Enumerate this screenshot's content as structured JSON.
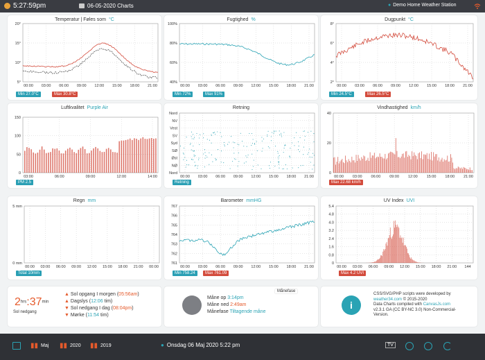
{
  "topbar": {
    "time": "5:27:59pm",
    "charts_title": "06-05-2020 Charts",
    "station_name": "Demo Home Weather Station"
  },
  "x_ticks_24": [
    "00:00",
    "03:00",
    "06:00",
    "09:00",
    "12:00",
    "15:00",
    "18:00",
    "21:00"
  ],
  "panels": {
    "temperature": {
      "title": "Temperatur | Føles som",
      "unit": "°C",
      "y_ticks": [
        "20°",
        "15°",
        "10°",
        "5°"
      ],
      "min_label": "Min 27.0°C",
      "max_label": "Max 30.8°C"
    },
    "humidity": {
      "title": "Fugtighed",
      "unit": "%",
      "y_ticks": [
        "100%",
        "80%",
        "60%",
        "40%"
      ],
      "min_label": "Min 72%",
      "max_label": "Max 91%"
    },
    "dewpoint": {
      "title": "Dugpunkt",
      "unit": "°C",
      "y_ticks": [
        "8°",
        "6°",
        "4°",
        "2°"
      ],
      "min_label": "Min 24.5°C",
      "max_label": "Max 26.5°C"
    },
    "airquality": {
      "title": "Luftkvalitet",
      "unit": "Purple Air",
      "y_ticks": [
        "150",
        "100",
        "50",
        "0"
      ],
      "x_ticks": [
        "03:00",
        "06:00",
        "09:00",
        "12:00",
        "14:00"
      ],
      "label": "PM 2.5"
    },
    "direction": {
      "title": "Retning",
      "y_ticks": [
        "Nord",
        "NV",
        "Vest",
        "SV",
        "Syd",
        "SØ",
        "Øst",
        "NØ",
        "Nord"
      ],
      "label": "Retning"
    },
    "windspeed": {
      "title": "Vindhastighed",
      "unit": "km/h",
      "y_ticks": [
        "40",
        "20",
        "0"
      ],
      "max_label": "Max 22.68 km/h"
    },
    "rain": {
      "title": "Regn",
      "unit": "mm",
      "y_ticks": [
        "5 mm",
        "0 mm"
      ],
      "total_label": "Total 10mm"
    },
    "barometer": {
      "title": "Barometer",
      "unit": "mmHG",
      "y_ticks": [
        "767",
        "765",
        "763",
        "761"
      ],
      "extra_ticks": [
        "766",
        "764",
        "762"
      ],
      "min_label": "Min 758.24",
      "max_label": "Max 761.09"
    },
    "uv": {
      "title": "UV Index",
      "unit": "UVI",
      "y_ticks": [
        "5.4",
        "4.8",
        "4.0",
        "3.2",
        "2.4",
        "1.6",
        "0.8",
        "0"
      ],
      "max_label": "Max 4.2 UVI",
      "x_ticks": [
        "00:00",
        "03:00",
        "06:00",
        "09:00",
        "12:00",
        "15:00",
        "18:00",
        "21:00",
        "144"
      ]
    }
  },
  "sun": {
    "hours": "2",
    "hrs_label": "hrs",
    "minutes": "37",
    "min_label": "min",
    "caption": "Sol nedgang",
    "sunrise_label": "Sol opgang I morgen",
    "sunrise_time": "05:56am",
    "daylight_label": "Dagslys",
    "daylight_value": "12:06",
    "sunset_label": "Sol nedgang I dag",
    "sunset_time": "08:04pm",
    "dark_label": "Mørke",
    "dark_value": "11:54",
    "tim": "tim"
  },
  "moon": {
    "title": "Månefase",
    "rise_label": "Måne op",
    "rise_time": "3:14pm",
    "set_label": "Måne ned",
    "set_time": "2:49am",
    "phase_label": "Månefase",
    "phase_value": "Tiltagende måne"
  },
  "info": {
    "line1": "CSS/SVG/PHP scripts were developed by",
    "line2": "weather34.com",
    "line2b": "© 2015-2020",
    "line3": "Data Charts compiled with",
    "line3b": "CanvasJs.com",
    "line4": "v2.3.1 GA (CC BY-NC 3.0) Non-Commercial-",
    "line5": "Version."
  },
  "bottombar": {
    "month": "Maj",
    "year1": "2020",
    "year2": "2019",
    "datetime": "Onsdag 06 Maj 2020 5:22 pm",
    "tv": "TV"
  },
  "colors": {
    "teal": "#2aa3b4",
    "red": "#d34b3c",
    "orange": "#e55a2b",
    "dark": "#3a3c42"
  }
}
